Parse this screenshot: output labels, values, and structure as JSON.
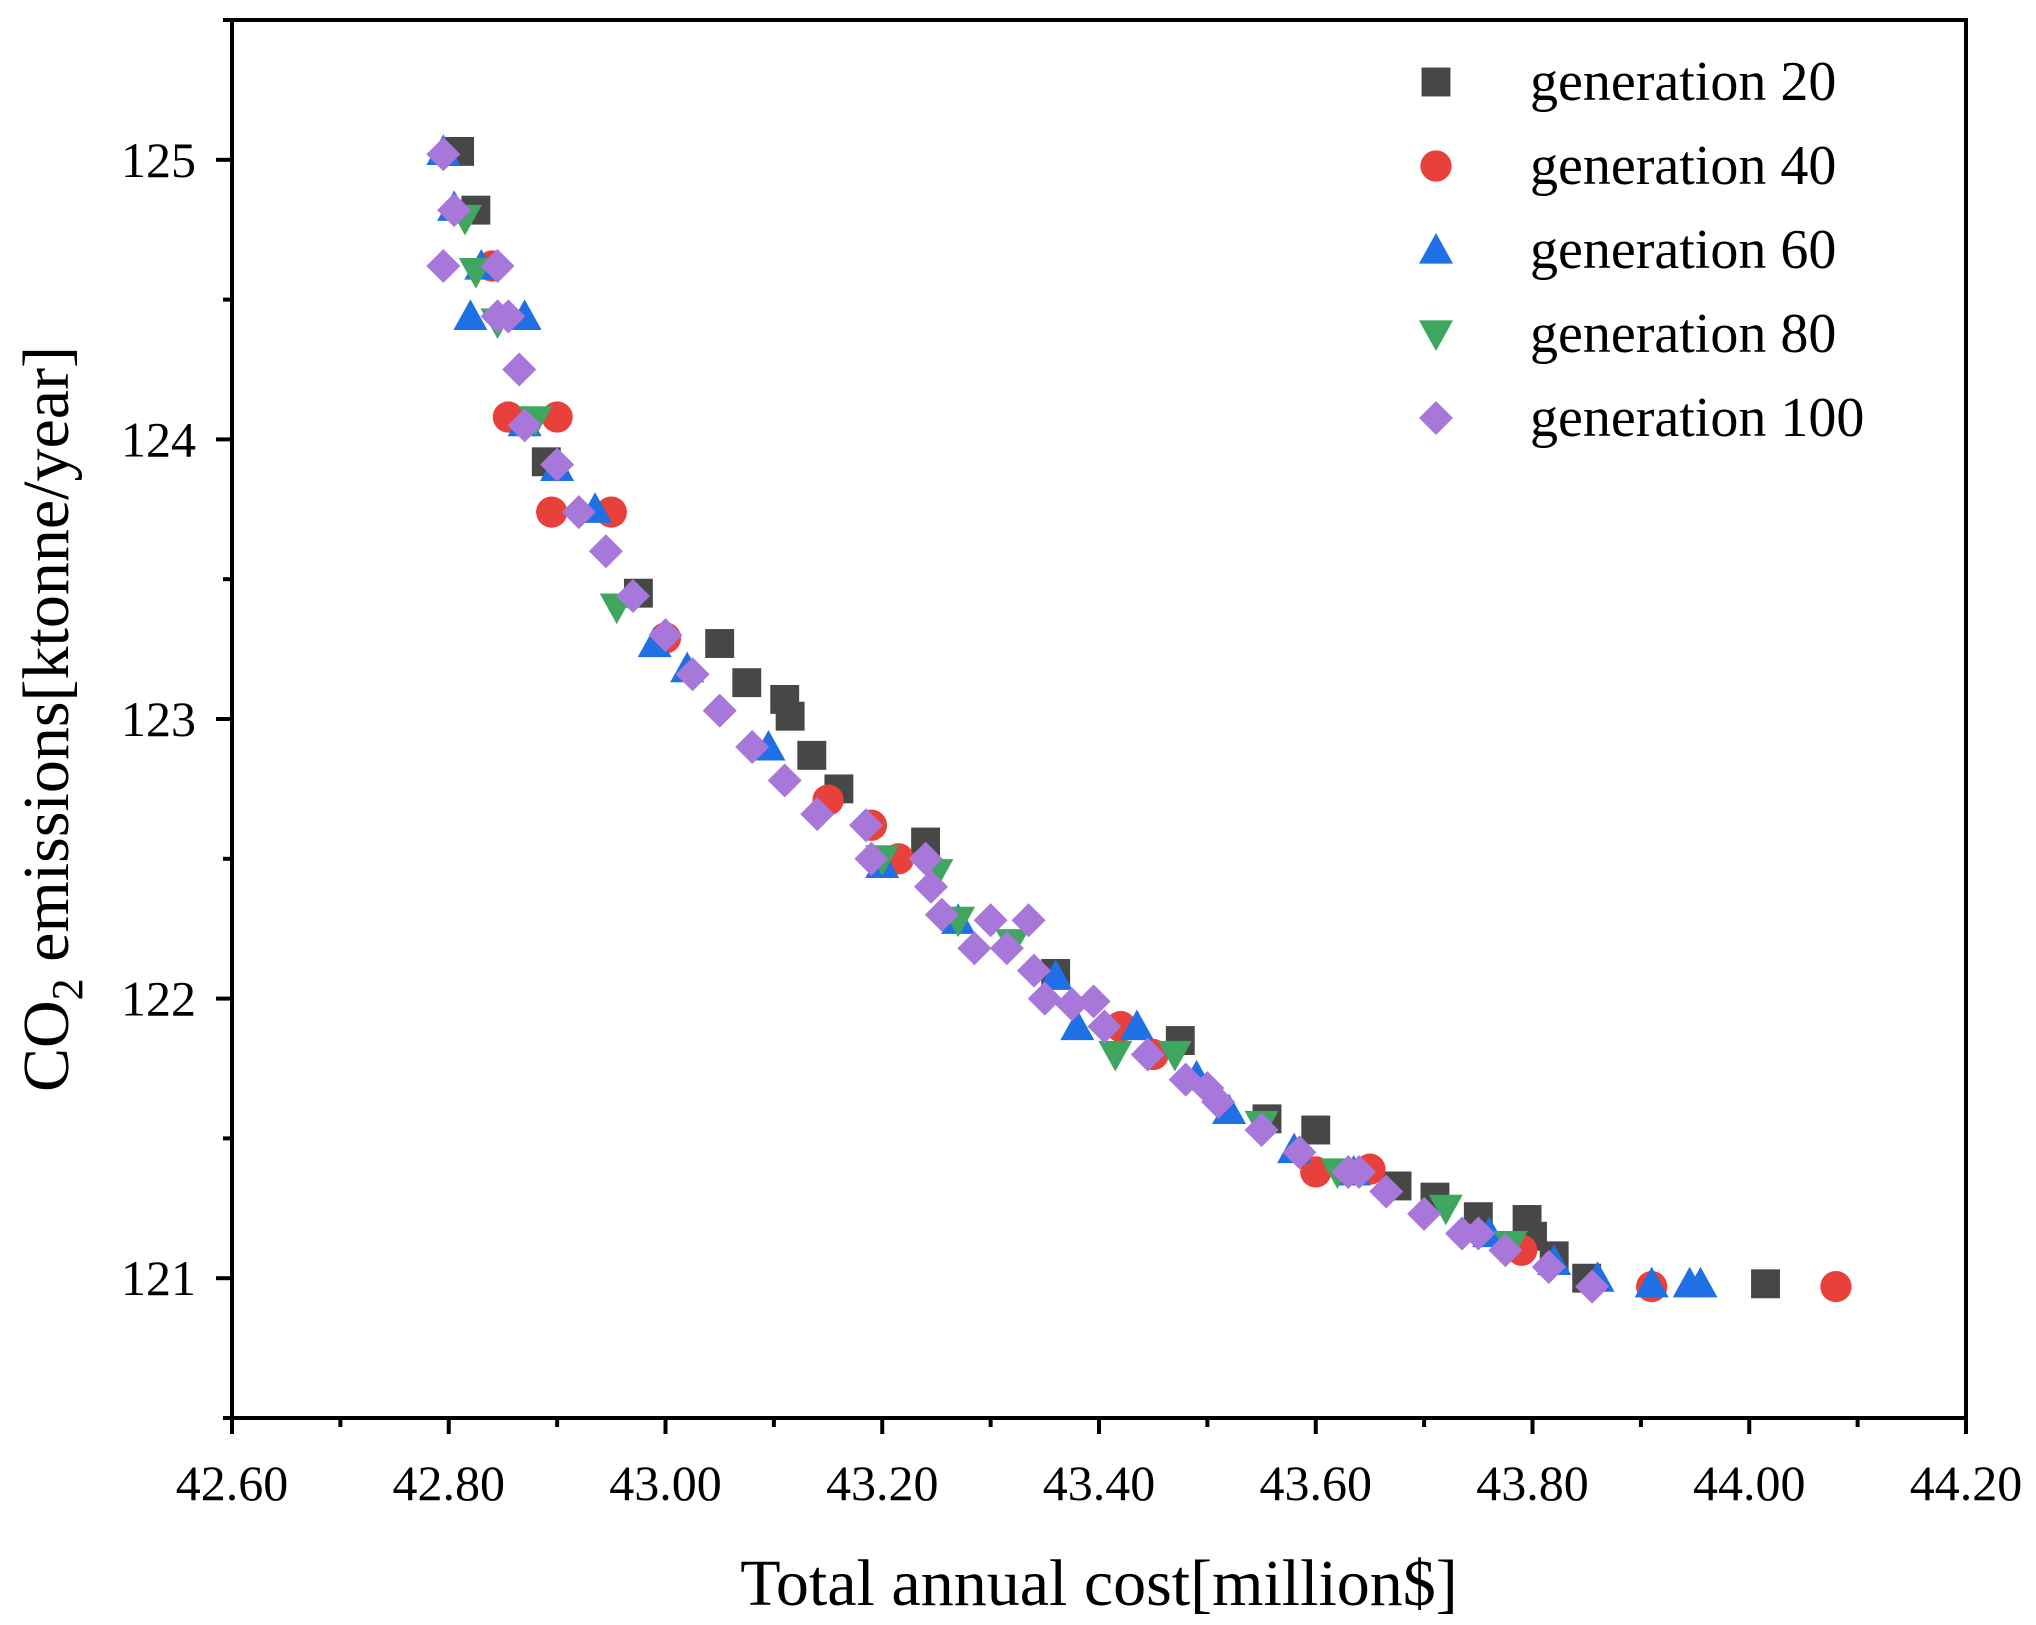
{
  "chart_data": {
    "type": "scatter",
    "title": "",
    "xlabel": "Total annual cost[million$]",
    "ylabel_parts": {
      "pre": "CO",
      "sub": "2",
      "post": " emissions[ktonne/year]"
    },
    "xlim": [
      42.6,
      44.2
    ],
    "ylim": [
      120.5,
      125.5
    ],
    "x_ticks": [
      42.6,
      42.8,
      43.0,
      43.2,
      43.4,
      43.6,
      43.8,
      44.0,
      44.2
    ],
    "x_tick_labels": [
      "42.60",
      "42.80",
      "43.00",
      "43.20",
      "43.40",
      "43.60",
      "43.80",
      "44.00",
      "44.20"
    ],
    "y_ticks": [
      121,
      122,
      123,
      124,
      125
    ],
    "y_tick_labels": [
      "121",
      "122",
      "123",
      "124",
      "125"
    ],
    "legend_position": "top-right",
    "series": [
      {
        "name": "generation 20",
        "marker": "square",
        "color": "#474747",
        "points": [
          [
            42.81,
            125.03
          ],
          [
            42.825,
            124.82
          ],
          [
            42.89,
            123.92
          ],
          [
            42.975,
            123.45
          ],
          [
            43.05,
            123.27
          ],
          [
            43.075,
            123.13
          ],
          [
            43.11,
            123.07
          ],
          [
            43.115,
            123.01
          ],
          [
            43.135,
            122.87
          ],
          [
            43.16,
            122.75
          ],
          [
            43.24,
            122.56
          ],
          [
            43.36,
            122.09
          ],
          [
            43.475,
            121.85
          ],
          [
            43.555,
            121.57
          ],
          [
            43.6,
            121.53
          ],
          [
            43.675,
            121.33
          ],
          [
            43.71,
            121.29
          ],
          [
            43.75,
            121.22
          ],
          [
            43.795,
            121.21
          ],
          [
            43.8,
            121.15
          ],
          [
            43.82,
            121.08
          ],
          [
            43.85,
            121.0
          ],
          [
            44.015,
            120.98
          ]
        ]
      },
      {
        "name": "generation 40",
        "marker": "circle",
        "color": "#e8403a",
        "points": [
          [
            42.84,
            124.62
          ],
          [
            42.855,
            124.08
          ],
          [
            42.9,
            124.08
          ],
          [
            42.895,
            123.74
          ],
          [
            42.95,
            123.74
          ],
          [
            43.0,
            123.29
          ],
          [
            43.15,
            122.71
          ],
          [
            43.19,
            122.62
          ],
          [
            43.215,
            122.5
          ],
          [
            43.42,
            121.9
          ],
          [
            43.45,
            121.8
          ],
          [
            43.6,
            121.38
          ],
          [
            43.65,
            121.39
          ],
          [
            43.79,
            121.1
          ],
          [
            43.91,
            120.97
          ],
          [
            44.08,
            120.97
          ]
        ]
      },
      {
        "name": "generation 60",
        "marker": "triangle-up",
        "color": "#1f6fe5",
        "points": [
          [
            42.795,
            125.03
          ],
          [
            42.805,
            124.83
          ],
          [
            42.82,
            124.44
          ],
          [
            42.83,
            124.62
          ],
          [
            42.87,
            124.44
          ],
          [
            42.87,
            124.06
          ],
          [
            42.9,
            123.9
          ],
          [
            42.935,
            123.75
          ],
          [
            42.99,
            123.27
          ],
          [
            43.02,
            123.18
          ],
          [
            43.095,
            122.9
          ],
          [
            43.2,
            122.48
          ],
          [
            43.27,
            122.28
          ],
          [
            43.36,
            122.08
          ],
          [
            43.38,
            121.9
          ],
          [
            43.435,
            121.9
          ],
          [
            43.49,
            121.72
          ],
          [
            43.52,
            121.6
          ],
          [
            43.58,
            121.46
          ],
          [
            43.635,
            121.38
          ],
          [
            43.76,
            121.16
          ],
          [
            43.82,
            121.06
          ],
          [
            43.86,
            121.0
          ],
          [
            43.91,
            120.98
          ],
          [
            43.945,
            120.98
          ],
          [
            43.955,
            120.98
          ]
        ]
      },
      {
        "name": "generation 80",
        "marker": "triangle-down",
        "color": "#3fa65f",
        "points": [
          [
            42.815,
            124.79
          ],
          [
            42.825,
            124.6
          ],
          [
            42.845,
            124.42
          ],
          [
            42.88,
            124.07
          ],
          [
            42.955,
            123.4
          ],
          [
            43.2,
            122.5
          ],
          [
            43.25,
            122.45
          ],
          [
            43.27,
            122.28
          ],
          [
            43.32,
            122.2
          ],
          [
            43.415,
            121.8
          ],
          [
            43.47,
            121.8
          ],
          [
            43.55,
            121.55
          ],
          [
            43.62,
            121.38
          ],
          [
            43.72,
            121.25
          ],
          [
            43.78,
            121.12
          ]
        ]
      },
      {
        "name": "generation 100",
        "marker": "diamond",
        "color": "#a877da",
        "points": [
          [
            42.795,
            125.02
          ],
          [
            42.805,
            124.82
          ],
          [
            42.795,
            124.62
          ],
          [
            42.845,
            124.62
          ],
          [
            42.845,
            124.44
          ],
          [
            42.855,
            124.44
          ],
          [
            42.865,
            124.25
          ],
          [
            42.87,
            124.05
          ],
          [
            42.9,
            123.91
          ],
          [
            42.92,
            123.74
          ],
          [
            42.945,
            123.6
          ],
          [
            42.97,
            123.44
          ],
          [
            43.0,
            123.3
          ],
          [
            43.025,
            123.16
          ],
          [
            43.05,
            123.03
          ],
          [
            43.08,
            122.9
          ],
          [
            43.11,
            122.78
          ],
          [
            43.14,
            122.66
          ],
          [
            43.185,
            122.62
          ],
          [
            43.19,
            122.5
          ],
          [
            43.24,
            122.5
          ],
          [
            43.245,
            122.4
          ],
          [
            43.255,
            122.3
          ],
          [
            43.285,
            122.18
          ],
          [
            43.3,
            122.28
          ],
          [
            43.315,
            122.18
          ],
          [
            43.335,
            122.28
          ],
          [
            43.34,
            122.1
          ],
          [
            43.35,
            122.0
          ],
          [
            43.375,
            121.98
          ],
          [
            43.395,
            121.99
          ],
          [
            43.405,
            121.9
          ],
          [
            43.445,
            121.8
          ],
          [
            43.48,
            121.71
          ],
          [
            43.5,
            121.68
          ],
          [
            43.51,
            121.63
          ],
          [
            43.55,
            121.53
          ],
          [
            43.585,
            121.45
          ],
          [
            43.63,
            121.38
          ],
          [
            43.64,
            121.38
          ],
          [
            43.665,
            121.31
          ],
          [
            43.7,
            121.23
          ],
          [
            43.735,
            121.16
          ],
          [
            43.75,
            121.16
          ],
          [
            43.775,
            121.1
          ],
          [
            43.815,
            121.04
          ],
          [
            43.855,
            120.97
          ]
        ]
      }
    ]
  }
}
